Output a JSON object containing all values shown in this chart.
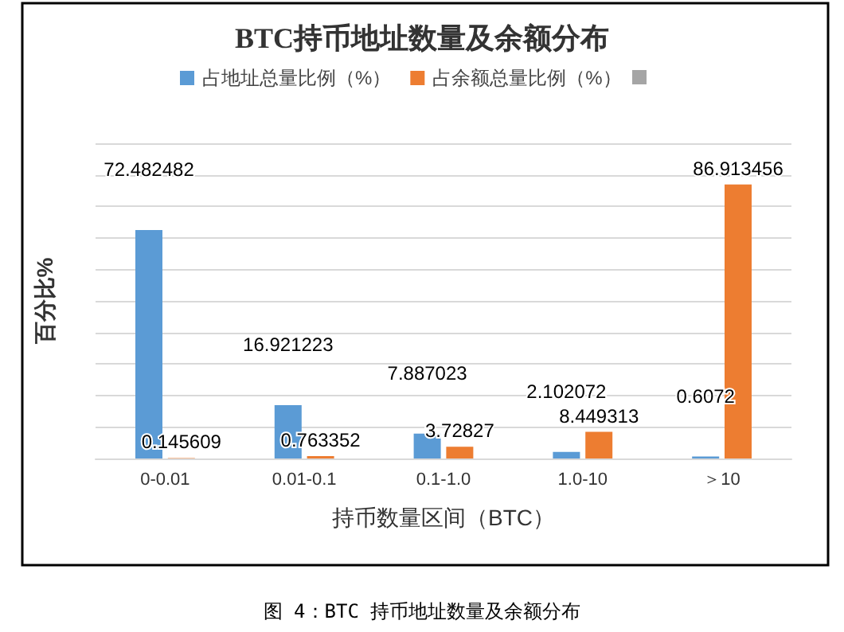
{
  "chart_data": {
    "type": "bar",
    "title": "BTC持币地址数量及余额分布",
    "xlabel": "持币数量区间（BTC）",
    "ylabel": "百分比%",
    "categories": [
      "0-0.01",
      "0.01-0.1",
      "0.1-1.0",
      "1.0-10",
      "＞10"
    ],
    "series": [
      {
        "name": "占地址总量比例（%）",
        "color": "#5b9bd5",
        "values": [
          72.482482,
          16.921223,
          7.887023,
          2.102072,
          0.6072
        ]
      },
      {
        "name": "占余额总量比例（%）",
        "color": "#ed7d31",
        "values": [
          0.145609,
          0.763352,
          3.72827,
          8.449313,
          86.913456
        ]
      }
    ],
    "ylim": [
      0,
      100
    ],
    "yticks": [
      {
        "value": 0,
        "label": null
      },
      {
        "value": 10,
        "label": null
      },
      {
        "value": 20,
        "label": null
      },
      {
        "value": 30,
        "label": null
      },
      {
        "value": 40,
        "label": null
      },
      {
        "value": 50,
        "label": null
      },
      {
        "value": 60,
        "label": null
      },
      {
        "value": 70,
        "label": null
      },
      {
        "value": 80,
        "label": null
      },
      {
        "value": 90,
        "label": null
      },
      {
        "value": 100,
        "label": null
      }
    ],
    "grid": "y",
    "legend": "top",
    "data_labels": true,
    "annotations": [
      "图 4：BTC 持币地址数量及余额分布"
    ]
  }
}
